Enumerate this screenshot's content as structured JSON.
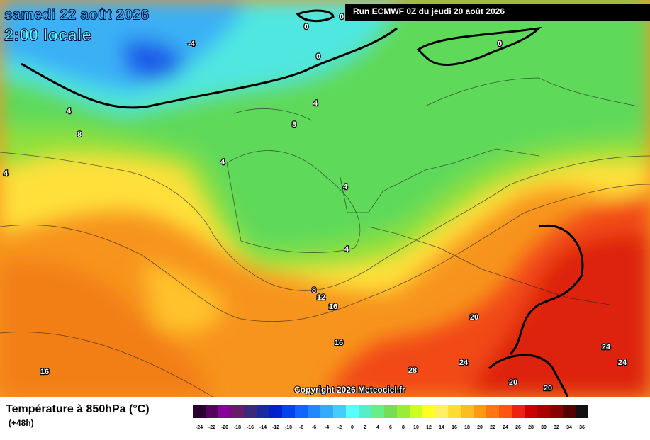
{
  "header": {
    "title": "samedi 22 août 2026",
    "subtitle": "2:00 locale",
    "run": "Run ECMWF 0Z du jeudi 20 août 2026",
    "copyright": "Copyright 2026 Meteociel.fr"
  },
  "contour_labels": [
    "0",
    "0",
    "0",
    "0",
    "-4",
    "4",
    "4",
    "4",
    "4",
    "4",
    "4",
    "8",
    "8",
    "8",
    "12",
    "16",
    "16",
    "16",
    "20",
    "20",
    "20",
    "24",
    "24",
    "24",
    "28"
  ],
  "legend": {
    "title": "Température à 850hPa (°C)",
    "lead": "(+48h)",
    "values": [
      -24,
      -22,
      -20,
      -18,
      -16,
      -14,
      -12,
      -10,
      -8,
      -6,
      -4,
      -2,
      0,
      2,
      4,
      6,
      8,
      10,
      12,
      14,
      16,
      18,
      20,
      22,
      24,
      26,
      28,
      30,
      32,
      34,
      36
    ],
    "colors": [
      "#2a0030",
      "#55005e",
      "#88009a",
      "#6a1a6a",
      "#3a2a7a",
      "#1a2aa0",
      "#0022cc",
      "#0044ee",
      "#1166ff",
      "#2288ff",
      "#33aaff",
      "#44ccff",
      "#55ffff",
      "#55eecc",
      "#66ee88",
      "#77dd55",
      "#99ee33",
      "#ccff22",
      "#ffff22",
      "#ffee66",
      "#ffdd33",
      "#ffbb22",
      "#ff9911",
      "#ff7711",
      "#ff5511",
      "#ee2211",
      "#cc0000",
      "#aa0000",
      "#880000",
      "#550000",
      "#111111"
    ]
  }
}
